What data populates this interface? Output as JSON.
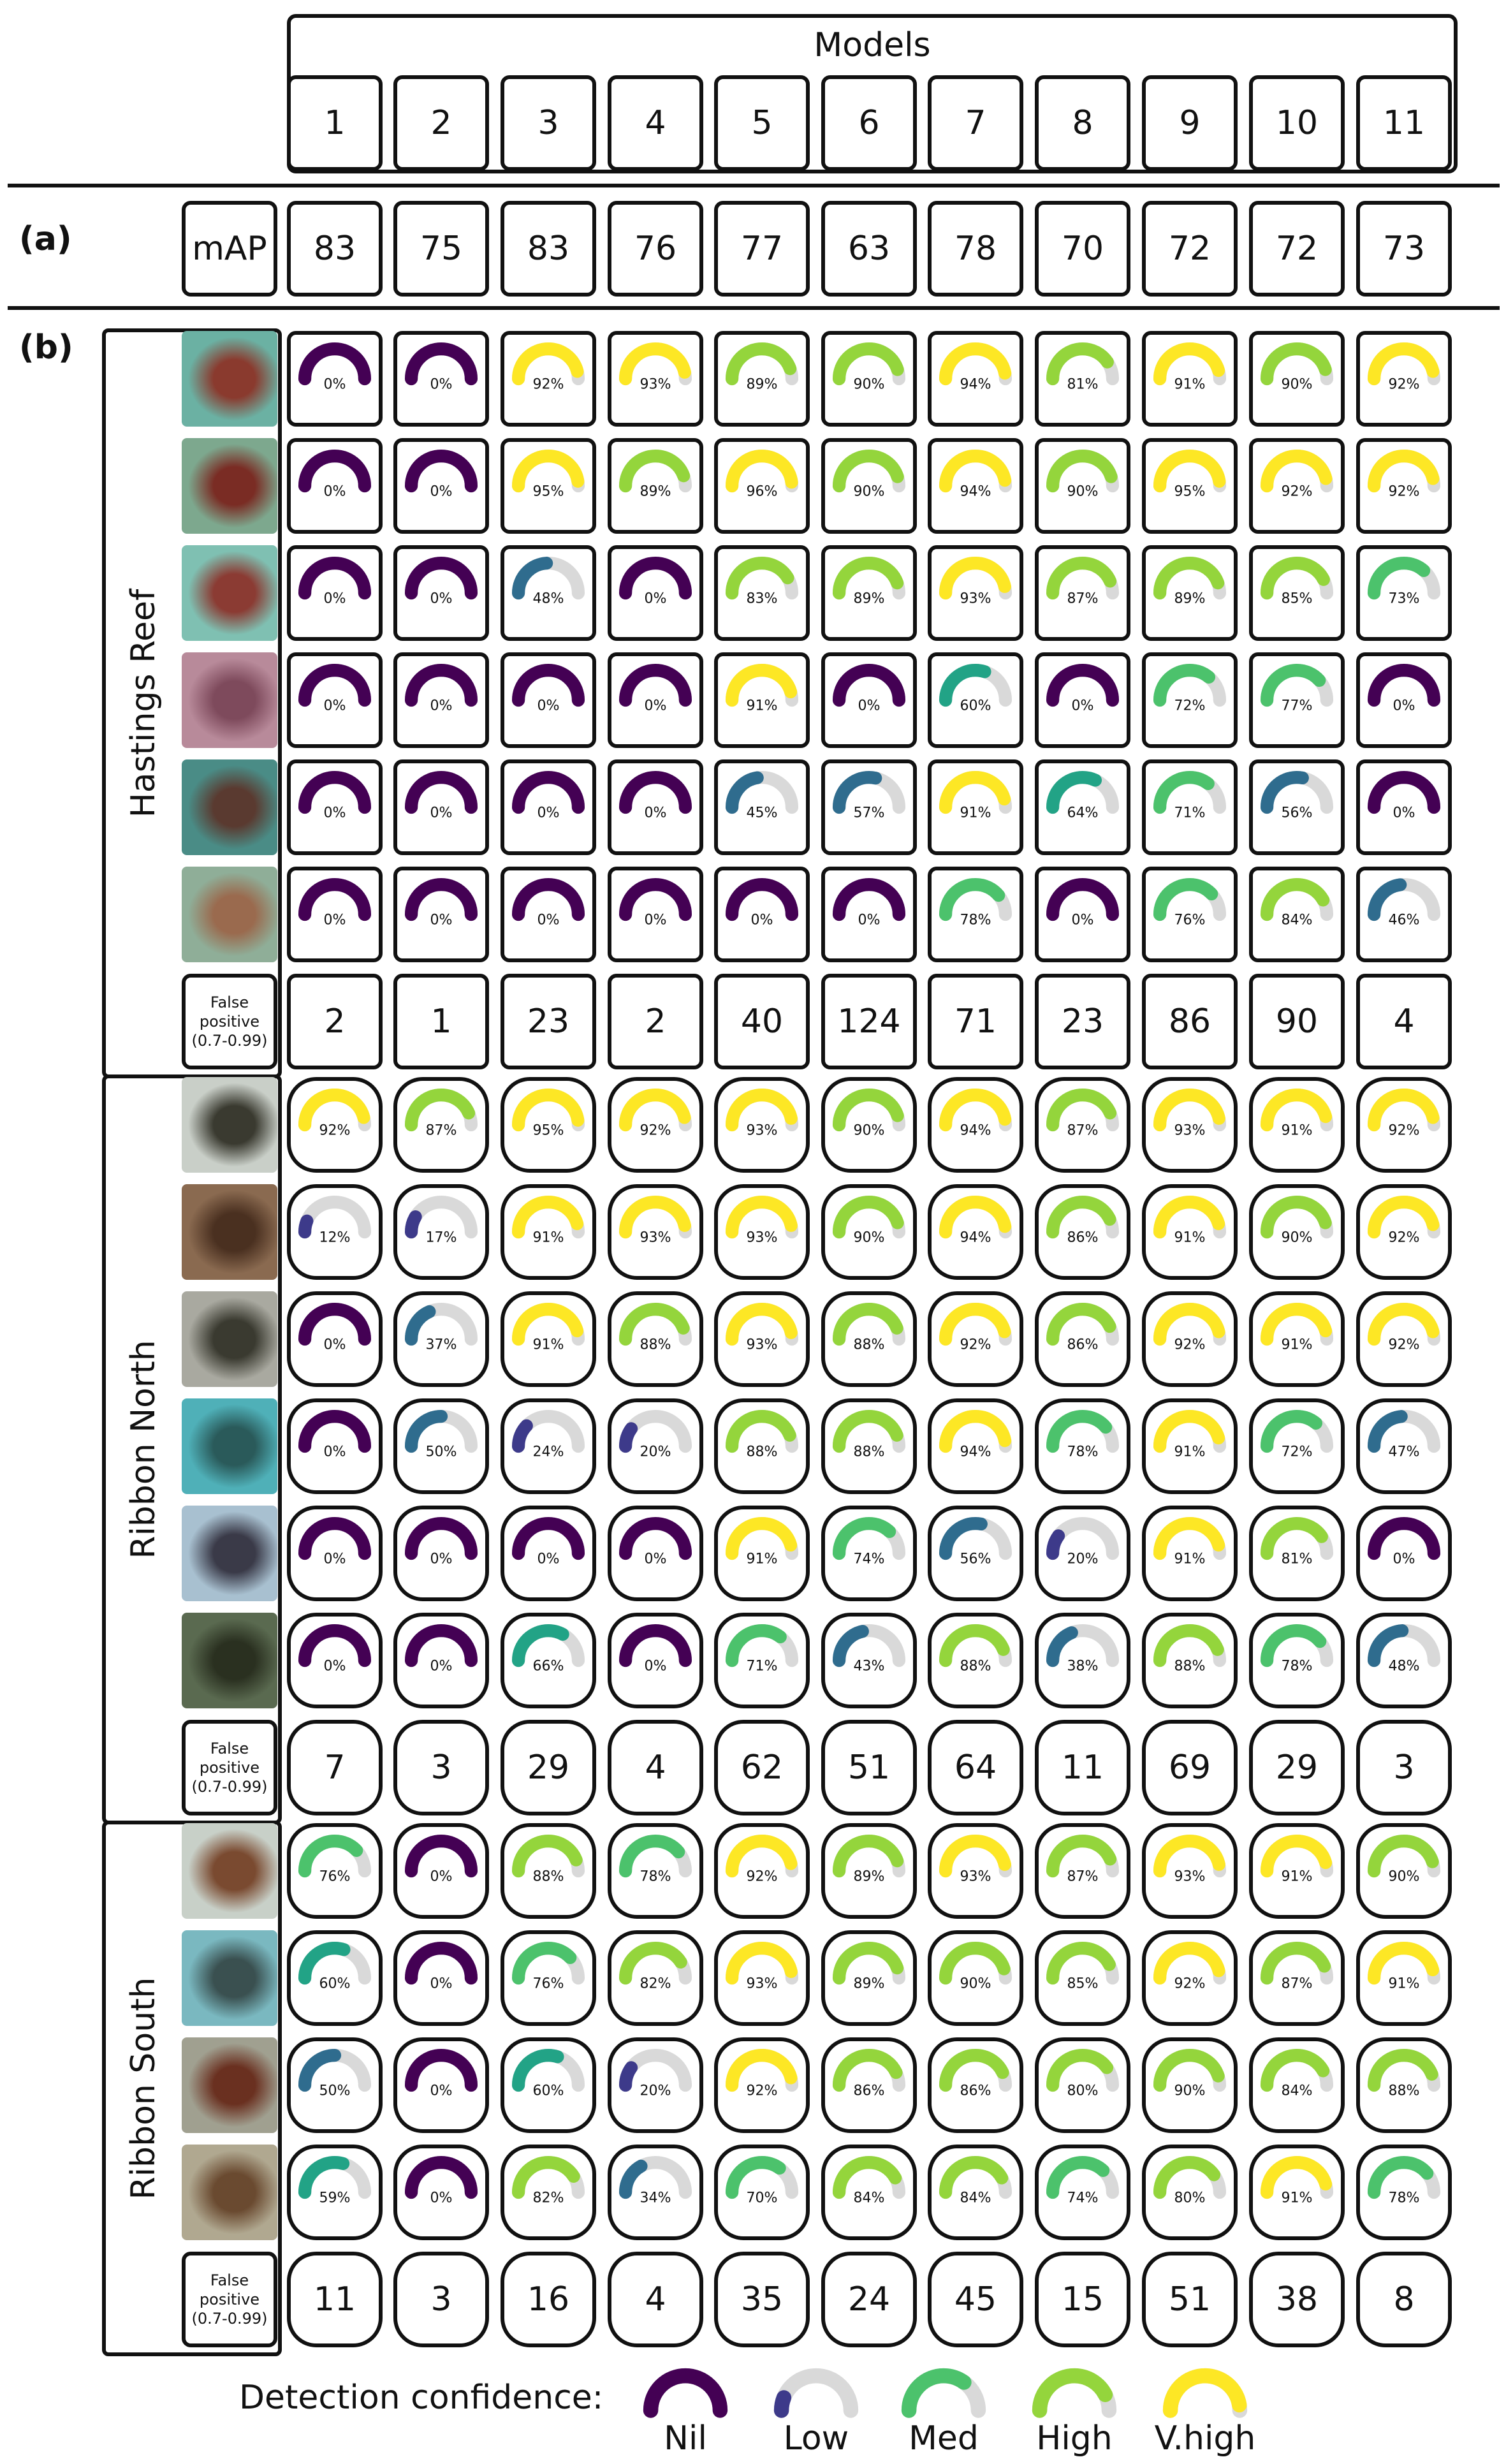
{
  "header": {
    "models_title": "Models",
    "models": [
      "1",
      "2",
      "3",
      "4",
      "5",
      "6",
      "7",
      "8",
      "9",
      "10",
      "11"
    ]
  },
  "section_a": {
    "label": "(a)",
    "metric_label": "mAP",
    "values": [
      "83",
      "75",
      "83",
      "76",
      "77",
      "63",
      "78",
      "70",
      "72",
      "72",
      "73"
    ]
  },
  "section_b": {
    "label": "(b)"
  },
  "sites": [
    {
      "name": "Hastings Reef",
      "fp_label": "False positive (0.7-0.99)",
      "false_positive": [
        "2",
        "1",
        "23",
        "2",
        "40",
        "124",
        "71",
        "23",
        "86",
        "90",
        "4"
      ],
      "thumb_colors": [
        [
          "#6bb1a3",
          "#8a3a2e"
        ],
        [
          "#7da88e",
          "#7a2c24"
        ],
        [
          "#7fc0b2",
          "#8b3b33"
        ],
        [
          "#b88a9a",
          "#7e4a5c"
        ],
        [
          "#4a8c86",
          "#5a3a30"
        ],
        [
          "#8fae98",
          "#9a6a4e"
        ]
      ],
      "rows": [
        [
          0,
          0,
          92,
          93,
          89,
          90,
          94,
          81,
          91,
          90,
          92
        ],
        [
          0,
          0,
          95,
          89,
          96,
          90,
          94,
          90,
          95,
          92,
          92
        ],
        [
          0,
          0,
          48,
          0,
          83,
          89,
          93,
          87,
          89,
          85,
          73
        ],
        [
          0,
          0,
          0,
          0,
          91,
          0,
          60,
          0,
          72,
          77,
          0
        ],
        [
          0,
          0,
          0,
          0,
          45,
          57,
          91,
          64,
          71,
          56,
          0
        ],
        [
          0,
          0,
          0,
          0,
          0,
          0,
          78,
          0,
          76,
          84,
          46
        ]
      ]
    },
    {
      "name": "Ribbon North",
      "fp_label": "False positive (0.7-0.99)",
      "false_positive": [
        "7",
        "3",
        "29",
        "4",
        "62",
        "51",
        "64",
        "11",
        "69",
        "29",
        "3"
      ],
      "thumb_colors": [
        [
          "#c9cfc8",
          "#3a3a30"
        ],
        [
          "#8a6a50",
          "#4a3020"
        ],
        [
          "#a9a9a0",
          "#3a3a30"
        ],
        [
          "#4fb0b8",
          "#2a5a5a"
        ],
        [
          "#a8c0d0",
          "#3a3a48"
        ],
        [
          "#5a6a50",
          "#2a3020"
        ]
      ],
      "rows": [
        [
          92,
          87,
          95,
          92,
          93,
          90,
          94,
          87,
          93,
          91,
          92
        ],
        [
          12,
          17,
          91,
          93,
          93,
          90,
          94,
          86,
          91,
          90,
          92
        ],
        [
          0,
          37,
          91,
          88,
          93,
          88,
          92,
          86,
          92,
          91,
          92
        ],
        [
          0,
          50,
          24,
          20,
          88,
          88,
          94,
          78,
          91,
          72,
          47
        ],
        [
          0,
          0,
          0,
          0,
          91,
          74,
          56,
          20,
          91,
          81,
          0
        ],
        [
          0,
          0,
          66,
          0,
          71,
          43,
          88,
          38,
          88,
          78,
          48
        ]
      ]
    },
    {
      "name": "Ribbon South",
      "fp_label": "False positive (0.7-0.99)",
      "false_positive": [
        "11",
        "3",
        "16",
        "4",
        "35",
        "24",
        "45",
        "15",
        "51",
        "38",
        "8"
      ],
      "thumb_colors": [
        [
          "#c8d0c8",
          "#7a4a30"
        ],
        [
          "#7ab8c0",
          "#3a5050"
        ],
        [
          "#a0a090",
          "#6a3020"
        ],
        [
          "#b0a890",
          "#6a4a30"
        ]
      ],
      "rows": [
        [
          76,
          0,
          88,
          78,
          92,
          89,
          93,
          87,
          93,
          91,
          90
        ],
        [
          60,
          0,
          76,
          82,
          93,
          89,
          90,
          85,
          92,
          87,
          91
        ],
        [
          50,
          0,
          60,
          20,
          92,
          86,
          86,
          80,
          90,
          84,
          88
        ],
        [
          59,
          0,
          82,
          34,
          70,
          84,
          84,
          74,
          80,
          91,
          78
        ]
      ]
    }
  ],
  "confidence_colors": {
    "nil": "#440154",
    "low": "#3d3a8a",
    "low_mid": "#2f6c8e",
    "med": "#22a386",
    "med_high": "#4cc26c",
    "high": "#94d53c",
    "vhigh": "#fde725",
    "track": "#d9d9d9"
  },
  "legend": {
    "title": "Detection confidence:",
    "items": [
      {
        "label": "Nil",
        "pct": 0
      },
      {
        "label": "Low",
        "pct": 12
      },
      {
        "label": "Med",
        "pct": 70
      },
      {
        "label": "High",
        "pct": 85
      },
      {
        "label": "V.high",
        "pct": 95
      }
    ]
  }
}
